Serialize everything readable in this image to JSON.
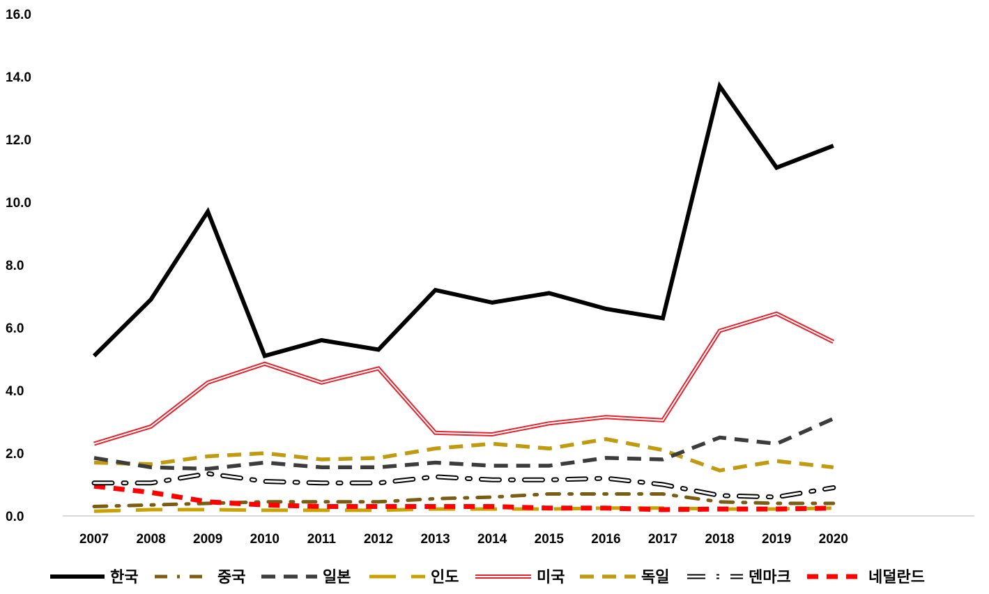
{
  "chart_data": {
    "type": "line",
    "title": "",
    "xlabel": "",
    "ylabel": "",
    "ylim": [
      0,
      16
    ],
    "yticks": [
      "0.0",
      "2.0",
      "4.0",
      "6.0",
      "8.0",
      "10.0",
      "12.0",
      "14.0",
      "16.0"
    ],
    "categories": [
      "2007",
      "2008",
      "2009",
      "2010",
      "2011",
      "2012",
      "2013",
      "2014",
      "2015",
      "2016",
      "2017",
      "2018",
      "2019",
      "2020"
    ],
    "grid": false,
    "legend": "bottom",
    "series": [
      {
        "name": "한국",
        "style": "solid-thick",
        "color": "#000000",
        "values": [
          5.1,
          6.9,
          9.7,
          5.1,
          5.6,
          5.3,
          7.2,
          6.8,
          7.1,
          6.6,
          6.3,
          13.7,
          11.1,
          11.8
        ]
      },
      {
        "name": "중국",
        "style": "dash-dot",
        "color": "#7a5c12",
        "values": [
          0.3,
          0.35,
          0.4,
          0.45,
          0.45,
          0.45,
          0.55,
          0.6,
          0.7,
          0.7,
          0.7,
          0.45,
          0.4,
          0.4
        ]
      },
      {
        "name": "일본",
        "style": "dash",
        "color": "#3c3c3c",
        "values": [
          1.85,
          1.55,
          1.5,
          1.7,
          1.55,
          1.55,
          1.7,
          1.6,
          1.6,
          1.85,
          1.8,
          2.5,
          2.3,
          3.1
        ]
      },
      {
        "name": "인도",
        "style": "long-dash",
        "color": "#c9a100",
        "values": [
          0.15,
          0.2,
          0.2,
          0.18,
          0.18,
          0.18,
          0.22,
          0.22,
          0.22,
          0.25,
          0.25,
          0.22,
          0.22,
          0.25
        ]
      },
      {
        "name": "미국",
        "style": "double",
        "color": "#e8202a",
        "values": [
          2.3,
          2.85,
          4.25,
          4.85,
          4.25,
          4.7,
          2.65,
          2.6,
          2.95,
          3.15,
          3.05,
          5.9,
          6.45,
          5.55
        ]
      },
      {
        "name": "독일",
        "style": "dash",
        "color": "#c09a10",
        "values": [
          1.7,
          1.65,
          1.9,
          2.0,
          1.8,
          1.85,
          2.15,
          2.3,
          2.15,
          2.45,
          2.1,
          1.45,
          1.75,
          1.55
        ]
      },
      {
        "name": "덴마크",
        "style": "double-dash-dot",
        "color": "#000000",
        "values": [
          1.05,
          1.05,
          1.35,
          1.1,
          1.05,
          1.05,
          1.25,
          1.15,
          1.15,
          1.2,
          1.0,
          0.65,
          0.6,
          0.9
        ]
      },
      {
        "name": "네덜란드",
        "style": "dash-thick",
        "color": "#ff0000",
        "values": [
          0.95,
          0.75,
          0.45,
          0.35,
          0.3,
          0.3,
          0.3,
          0.3,
          0.25,
          0.25,
          0.2,
          0.22,
          0.22,
          0.25
        ]
      }
    ]
  }
}
